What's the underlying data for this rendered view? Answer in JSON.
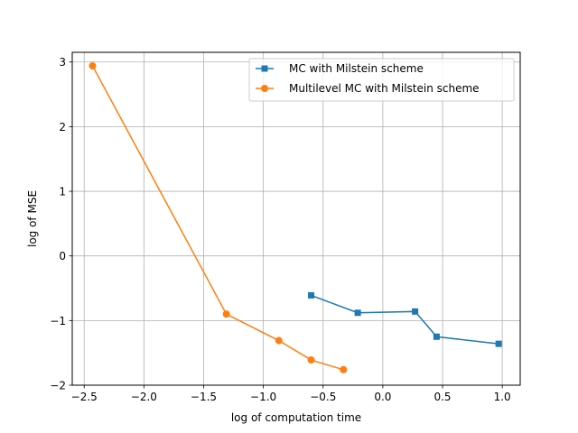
{
  "chart_data": {
    "type": "line",
    "title": "",
    "xlabel": "log of computation time",
    "ylabel": "log of MSE",
    "xlim": [
      -2.6,
      1.15
    ],
    "ylim": [
      -2.0,
      3.15
    ],
    "xticks": [
      -2.5,
      -2.0,
      -1.5,
      -1.0,
      -0.5,
      0.0,
      0.5,
      1.0
    ],
    "xtick_labels": [
      "−2.5",
      "−2.0",
      "−1.5",
      "−1.0",
      "−0.5",
      "0.0",
      "0.5",
      "1.0"
    ],
    "yticks": [
      -2,
      -1,
      0,
      1,
      2,
      3
    ],
    "ytick_labels": [
      "−2",
      "−1",
      "0",
      "1",
      "2",
      "3"
    ],
    "grid": true,
    "legend_position": "top-right",
    "series": [
      {
        "name": "MC with Milstein scheme",
        "color": "#1f77b4",
        "marker": "square",
        "x": [
          -0.6,
          -0.21,
          0.27,
          0.45,
          0.97
        ],
        "y": [
          -0.61,
          -0.88,
          -0.86,
          -1.25,
          -1.36
        ]
      },
      {
        "name": "Multilevel MC with Milstein scheme",
        "color": "#ff7f0e",
        "marker": "circle",
        "x": [
          -2.43,
          -1.31,
          -0.87,
          -0.6,
          -0.33
        ],
        "y": [
          2.94,
          -0.9,
          -1.31,
          -1.61,
          -1.76
        ]
      }
    ]
  }
}
